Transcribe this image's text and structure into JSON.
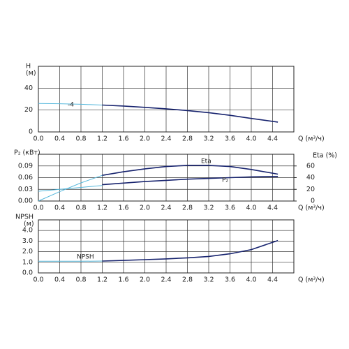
{
  "chart_data": [
    {
      "type": "line",
      "y_label": "H",
      "y_unit": "(м)",
      "x_label": "Q (м³/ч)",
      "xlim": [
        0,
        4.8
      ],
      "xticks": [
        {
          "value": 0,
          "label": "0.0"
        },
        0.4,
        0.8,
        1.2,
        1.6,
        {
          "value": 2,
          "label": "2.0"
        },
        2.4,
        2.8,
        3.2,
        3.6,
        {
          "value": 4,
          "label": "4.0"
        },
        4.4
      ],
      "ylim": [
        0,
        60
      ],
      "yticks": [
        0,
        20,
        40
      ],
      "grid": true,
      "series": [
        {
          "color": "#56b8dc",
          "x": [
            0,
            0.4,
            0.8,
            1.2
          ],
          "values": [
            26,
            25.8,
            25.3,
            24.6
          ]
        },
        {
          "name": "-4",
          "color": "#17236e",
          "x": [
            1.2,
            1.6,
            2.0,
            2.4,
            2.8,
            3.2,
            3.6,
            4.0,
            4.5
          ],
          "values": [
            24.6,
            23.7,
            22.5,
            21.1,
            19.5,
            17.6,
            15.2,
            12.3,
            9
          ]
        }
      ]
    },
    {
      "type": "line",
      "y_label": "P₂ (кВт)",
      "y2_label": "Eta (%)",
      "x_label": "Q (м³/ч)",
      "xlim": [
        0,
        4.8
      ],
      "xticks": [
        {
          "value": 0,
          "label": "0.0"
        },
        0.4,
        0.8,
        1.2,
        1.6,
        {
          "value": 2,
          "label": "2.0"
        },
        2.4,
        2.8,
        3.2,
        3.6,
        {
          "value": 4,
          "label": "4.0"
        },
        4.4
      ],
      "ylim": [
        0,
        0.12
      ],
      "yticks": [
        {
          "value": 0,
          "label": "0.00"
        },
        0.03,
        0.06,
        0.09
      ],
      "y2lim": [
        0,
        80
      ],
      "y2ticks": [
        0,
        20,
        40,
        60
      ],
      "grid": true,
      "series": [
        {
          "color": "#56b8dc",
          "axis": "y2",
          "x": [
            0,
            0.4,
            0.8,
            1.2
          ],
          "values": [
            0,
            16,
            31,
            44
          ]
        },
        {
          "name": "Eta",
          "color": "#17236e",
          "axis": "y2",
          "x": [
            1.2,
            1.6,
            2.0,
            2.4,
            2.8,
            3.2,
            3.6,
            4.0,
            4.5
          ],
          "values": [
            44,
            50,
            55,
            59,
            61,
            61,
            59,
            54,
            46
          ]
        },
        {
          "color": "#56b8dc",
          "x": [
            0,
            0.4,
            0.8,
            1.2
          ],
          "values": [
            0.025,
            0.03,
            0.035,
            0.04
          ]
        },
        {
          "name": "P₂",
          "color": "#17236e",
          "x": [
            1.2,
            1.6,
            2.0,
            2.4,
            2.8,
            3.2,
            3.6,
            4.0,
            4.5
          ],
          "values": [
            0.042,
            0.046,
            0.05,
            0.053,
            0.056,
            0.058,
            0.06,
            0.062,
            0.063
          ]
        }
      ]
    },
    {
      "type": "line",
      "y_label": "NPSH",
      "y_unit": "(м)",
      "x_label": "Q (м³/ч)",
      "xlim": [
        0,
        4.8
      ],
      "xticks": [
        {
          "value": 0,
          "label": "0.0"
        },
        0.4,
        0.8,
        1.2,
        1.6,
        {
          "value": 2,
          "label": "2.0"
        },
        2.4,
        2.8,
        3.2,
        3.6,
        {
          "value": 4,
          "label": "4.0"
        },
        4.4
      ],
      "ylim": [
        0,
        5
      ],
      "yticks": [
        {
          "value": 0,
          "label": "0.0"
        },
        {
          "value": 1,
          "label": "1.0"
        },
        {
          "value": 2,
          "label": "2.0"
        },
        {
          "value": 3,
          "label": "3.0"
        },
        {
          "value": 4,
          "label": "4.0"
        }
      ],
      "grid": true,
      "series": [
        {
          "color": "#56b8dc",
          "x": [
            0,
            0.4,
            0.8,
            1.2
          ],
          "values": [
            1.1,
            1.1,
            1.1,
            1.12
          ]
        },
        {
          "name": "NPSH",
          "color": "#17236e",
          "x": [
            1.2,
            1.6,
            2.0,
            2.4,
            2.8,
            3.2,
            3.6,
            4.0,
            4.5
          ],
          "values": [
            1.12,
            1.18,
            1.25,
            1.32,
            1.42,
            1.55,
            1.8,
            2.2,
            3.05
          ]
        }
      ]
    }
  ]
}
